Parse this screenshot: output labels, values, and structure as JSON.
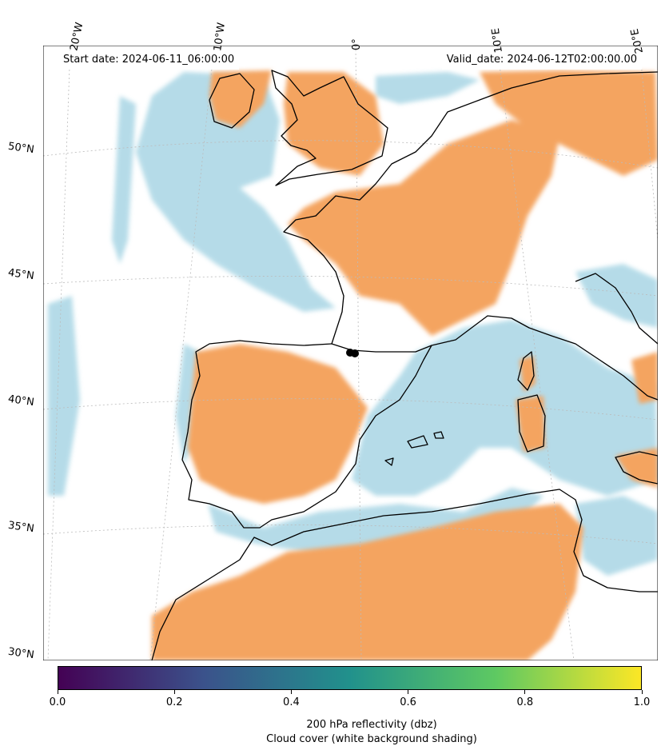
{
  "header": {
    "start_date": "Start date: 2024-06-11_06:00:00",
    "valid_date": "Valid_date: 2024-06-12T02:00:00.00"
  },
  "map": {
    "longitude_labels": [
      "20°W",
      "10°W",
      "0°",
      "10°E",
      "20°E"
    ],
    "latitude_labels": [
      "50°N",
      "45°N",
      "40°N",
      "35°N",
      "30°N"
    ],
    "colors": {
      "cloud_blue": "#add8e6",
      "reflectivity_orange": "#f4a460",
      "coastline": "#000000",
      "gridline": "#bbbbbb"
    }
  },
  "colorbar": {
    "colormap": "viridis",
    "range": [
      0.0,
      1.0
    ],
    "ticks": [
      "0.0",
      "0.2",
      "0.4",
      "0.6",
      "0.8",
      "1.0"
    ],
    "label_line1": "200 hPa reflectivity (dbz)",
    "label_line2": "Cloud cover (white background shading)",
    "colors": [
      "#440154",
      "#3b528b",
      "#21918c",
      "#5ec962",
      "#fde725"
    ]
  }
}
